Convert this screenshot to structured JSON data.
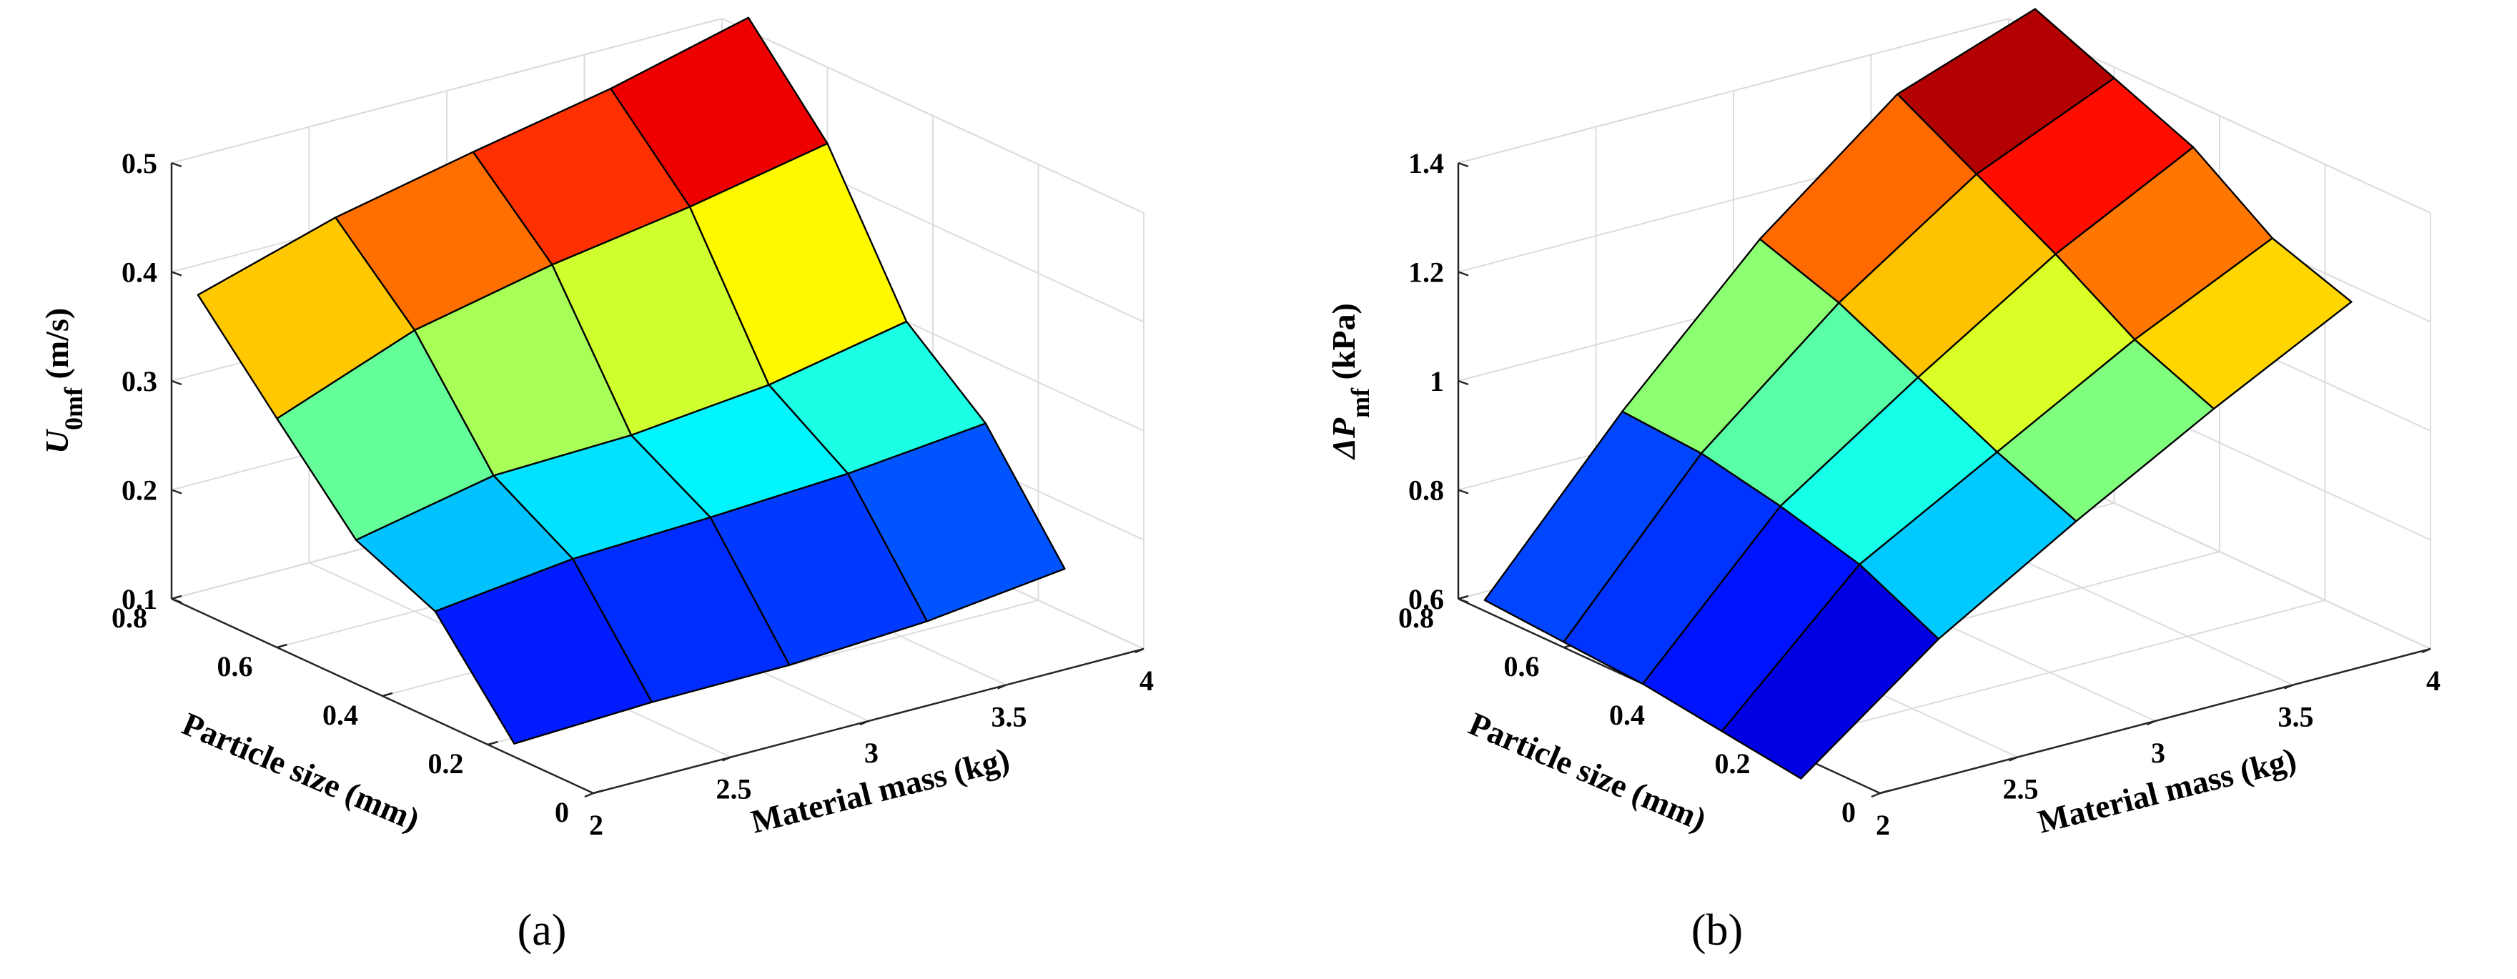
{
  "chart_data": [
    {
      "type": "surface",
      "panel_label": "(a)",
      "zlabel_symbol": "U",
      "zlabel_sub": "0mf",
      "zlabel_unit": " (m/s)",
      "xlabel": "Material mass (kg)",
      "ylabel": "Particle size (mm)",
      "xlim": [
        2,
        4
      ],
      "ylim": [
        0,
        0.8
      ],
      "zlim": [
        0.1,
        0.5
      ],
      "xticks": [
        "2",
        "2.5",
        "3",
        "3.5",
        "4"
      ],
      "xtick_values": [
        2,
        2.5,
        3,
        3.5,
        4
      ],
      "yticks": [
        "0",
        "0.2",
        "0.4",
        "0.6",
        "0.8"
      ],
      "ytick_values": [
        0,
        0.2,
        0.4,
        0.6,
        0.8
      ],
      "zticks": [
        "0.1",
        "0.2",
        "0.3",
        "0.4",
        "0.5"
      ],
      "ztick_values": [
        0.1,
        0.2,
        0.3,
        0.4,
        0.5
      ],
      "x": [
        2.0,
        2.5,
        3.0,
        3.5,
        4.0
      ],
      "y": [
        0.15,
        0.3,
        0.45,
        0.6,
        0.75
      ],
      "z": [
        [
          0.112,
          0.117,
          0.118,
          0.125,
          0.14
        ],
        [
          0.2,
          0.215,
          0.22,
          0.227,
          0.24
        ],
        [
          0.232,
          0.258,
          0.262,
          0.275,
          0.3
        ],
        [
          0.31,
          0.358,
          0.385,
          0.405,
          0.43
        ],
        [
          0.39,
          0.428,
          0.455,
          0.48,
          0.512
        ]
      ],
      "colormap": "jet"
    },
    {
      "type": "surface",
      "panel_label": "(b)",
      "zlabel_symbol": "ΔP",
      "zlabel_sub": "mf",
      "zlabel_unit": " (kPa)",
      "xlabel": "Material mass (kg)",
      "ylabel": "Particle size (mm)",
      "xlim": [
        2,
        4
      ],
      "ylim": [
        0,
        0.8
      ],
      "zlim": [
        0.6,
        1.4
      ],
      "xticks": [
        "2",
        "2.5",
        "3",
        "3.5",
        "4"
      ],
      "xtick_values": [
        2,
        2.5,
        3,
        3.5,
        4
      ],
      "yticks": [
        "0",
        "0.2",
        "0.4",
        "0.6",
        "0.8"
      ],
      "ytick_values": [
        0,
        0.2,
        0.4,
        0.6,
        0.8
      ],
      "zticks": [
        "0.6",
        "0.8",
        "1",
        "1.2",
        "1.4"
      ],
      "ztick_values": [
        0.6,
        0.8,
        1.0,
        1.2,
        1.4
      ],
      "x": [
        2.0,
        2.5,
        3.0,
        3.5,
        4.0
      ],
      "y": [
        0.15,
        0.3,
        0.45,
        0.6,
        0.75
      ],
      "z": [
        [
          0.56,
          0.75,
          0.9,
          1.04,
          1.17
        ],
        [
          0.58,
          0.82,
          0.96,
          1.1,
          1.22
        ],
        [
          0.6,
          0.86,
          1.03,
          1.19,
          1.32
        ],
        [
          0.61,
          0.89,
          1.1,
          1.27,
          1.38
        ],
        [
          0.62,
          0.9,
          1.15,
          1.35,
          1.44
        ]
      ],
      "colormap": "jet"
    }
  ]
}
